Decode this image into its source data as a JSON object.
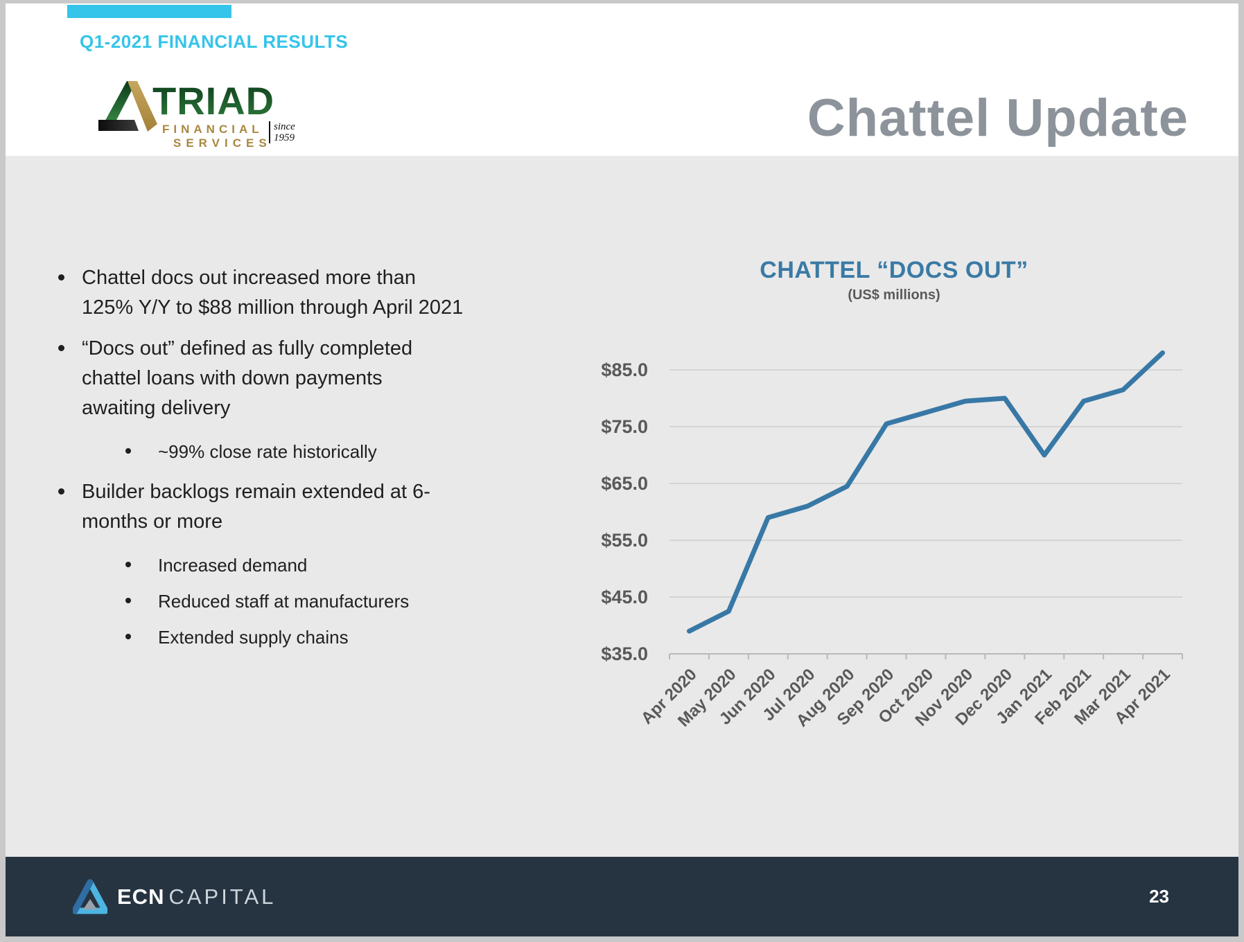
{
  "header": {
    "eyebrow": "Q1-2021 FINANCIAL RESULTS",
    "title": "Chattel Update"
  },
  "logo_triad": {
    "name": "TRIAD",
    "line1": "FINANCIAL",
    "line2": "SERVICES",
    "since_top": "since",
    "since_bottom": "1959"
  },
  "bullets": [
    {
      "level": 1,
      "lines": [
        "Chattel docs out increased more than",
        "125% Y/Y to $88 million through April 2021"
      ]
    },
    {
      "level": 1,
      "lines": [
        "“Docs out” defined as fully completed",
        "chattel loans with down payments",
        "awaiting delivery"
      ]
    },
    {
      "level": 2,
      "lines": [
        "~99% close rate historically"
      ]
    },
    {
      "level": 1,
      "lines": [
        "Builder backlogs remain extended at 6-",
        "months or more"
      ]
    },
    {
      "level": 2,
      "lines": [
        "Increased demand"
      ]
    },
    {
      "level": 2,
      "lines": [
        "Reduced staff at manufacturers"
      ]
    },
    {
      "level": 2,
      "lines": [
        "Extended supply chains"
      ]
    }
  ],
  "chart_data": {
    "type": "line",
    "title": "CHATTEL “DOCS OUT”",
    "subtitle": "(US$ millions)",
    "categories": [
      "Apr 2020",
      "May 2020",
      "Jun 2020",
      "Jul 2020",
      "Aug 2020",
      "Sep 2020",
      "Oct 2020",
      "Nov 2020",
      "Dec 2020",
      "Jan 2021",
      "Feb 2021",
      "Mar 2021",
      "Apr 2021"
    ],
    "series": [
      {
        "name": "Chattel docs out (US$ millions)",
        "values": [
          39,
          42.5,
          59,
          61,
          64.5,
          75.5,
          77.5,
          79.5,
          80,
          70,
          79.5,
          81.5,
          88
        ]
      }
    ],
    "ylim": [
      35,
      85
    ],
    "ytick_step": 10,
    "ytick_prefix": "$",
    "grid": true,
    "legend": "none",
    "line_color": "#3878a6",
    "gridline_color": "#d4d4d4",
    "axis_color": "#b8b8b8",
    "axis_label_color": "#595959"
  },
  "footer": {
    "brand_bold": "ECN",
    "brand_light": "CAPITAL",
    "page_number": "23"
  },
  "colors": {
    "accent_cyan": "#35c4ea",
    "title_gray": "#8d939a",
    "chart_title_blue": "#3a7aa5",
    "body_text": "#1f1f1f",
    "footer_bg": "#263442",
    "triad_green": "#1b5e2e",
    "triad_gold": "#a8873f"
  }
}
